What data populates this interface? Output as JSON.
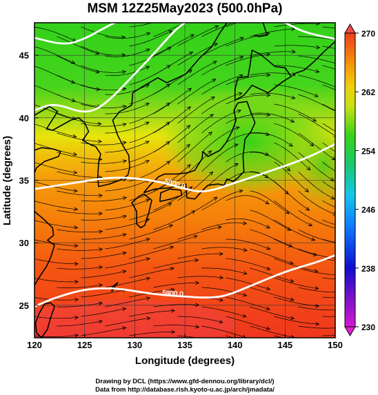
{
  "title": "MSM 12Z25May2023 (500.0hPa)",
  "xlabel": "Longitude (degrees)",
  "ylabel": "Latitude  (degrees)",
  "credits": {
    "line1": "Drawing by DCL (https://www.gfd-dennou.org/library/dcl/)",
    "line2": "Data from http://database.rish.kyoto-u.ac.jp/arch/jmadata/"
  },
  "chart_data": {
    "type": "heatmap",
    "xlim": [
      120,
      150
    ],
    "ylim": [
      22.4,
      47.6
    ],
    "x_ticks": [
      "120",
      "125",
      "130",
      "135",
      "140",
      "145",
      "150"
    ],
    "y_ticks": [
      "25",
      "30",
      "35",
      "40",
      "45"
    ],
    "grid": true,
    "colorbar": {
      "min": 230,
      "max": 270,
      "ticks": [
        "230",
        "238",
        "246",
        "254",
        "262",
        "270"
      ],
      "placement": "right"
    },
    "contours": [
      {
        "label": "5800.0",
        "level": 5800,
        "points": [
          [
            120,
            34.3
          ],
          [
            124,
            34.8
          ],
          [
            128,
            35.3
          ],
          [
            132,
            35.0
          ],
          [
            135,
            34.3
          ],
          [
            137,
            34.0
          ],
          [
            140,
            34.8
          ],
          [
            143,
            35.6
          ],
          [
            147,
            36.7
          ],
          [
            150,
            37.9
          ]
        ]
      },
      {
        "label": "5900.0",
        "level": 5900,
        "points": [
          [
            120,
            24.9
          ],
          [
            122,
            25.6
          ],
          [
            125,
            26.3
          ],
          [
            128,
            26.4
          ],
          [
            131,
            26.0
          ],
          [
            133,
            25.8
          ],
          [
            135,
            25.7
          ],
          [
            137,
            25.6
          ],
          [
            139,
            25.7
          ],
          [
            142,
            26.7
          ],
          [
            145,
            27.7
          ],
          [
            148,
            28.4
          ],
          [
            150,
            29.0
          ]
        ]
      },
      {
        "label": "",
        "level": 5700,
        "points": [
          [
            120,
            40.6
          ],
          [
            122,
            41.2
          ],
          [
            125,
            40.3
          ],
          [
            127,
            41.0
          ],
          [
            130,
            43.5
          ],
          [
            132,
            45.2
          ],
          [
            134,
            47.0
          ],
          [
            135,
            47.6
          ]
        ]
      },
      {
        "label": "",
        "level": 5600,
        "points": [
          [
            120,
            46.4
          ],
          [
            123,
            45.8
          ],
          [
            125,
            46.3
          ],
          [
            127,
            47.2
          ],
          [
            128,
            47.6
          ]
        ]
      },
      {
        "label": "",
        "level": 5600,
        "points": [
          [
            145,
            47.6
          ],
          [
            147,
            46.8
          ],
          [
            150,
            46.3
          ]
        ]
      }
    ]
  }
}
